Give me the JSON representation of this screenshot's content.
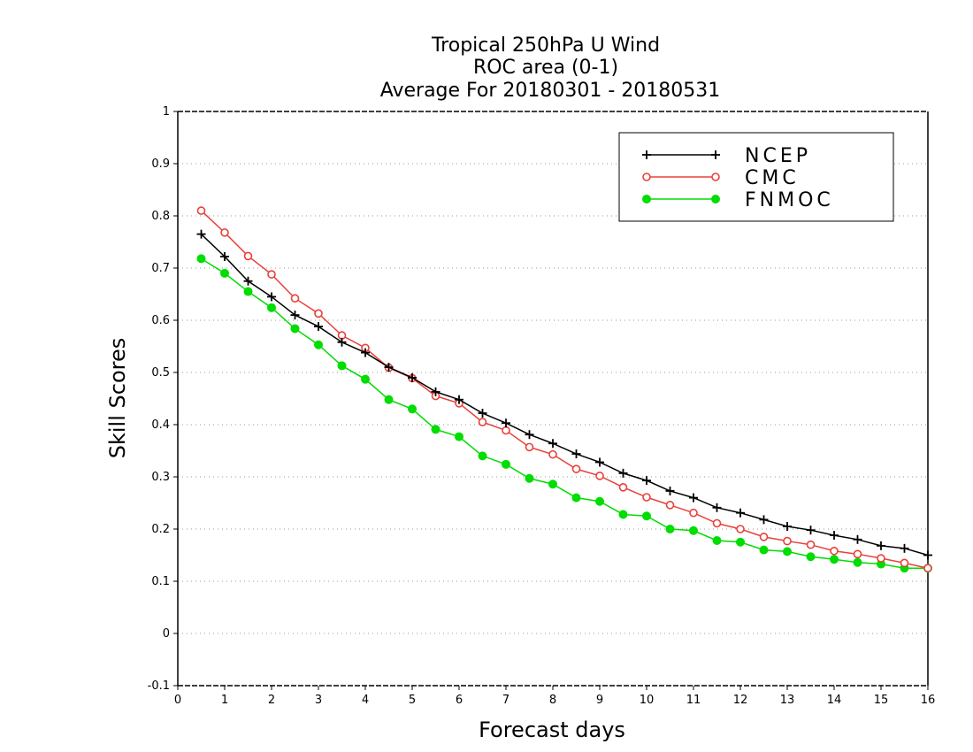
{
  "chart_data": {
    "type": "line",
    "title": "Tropical 250hPa U Wind",
    "subtitle": "ROC area (0-1)",
    "subtitle2": "Average For 20180301 - 20180531",
    "xlabel": "Forecast days",
    "ylabel": "Skill Scores",
    "xlim": [
      0,
      16
    ],
    "ylim": [
      -0.1,
      1
    ],
    "xticks": [
      0,
      1,
      2,
      3,
      4,
      5,
      6,
      7,
      8,
      9,
      10,
      11,
      12,
      13,
      14,
      15,
      16
    ],
    "yticks": [
      -0.1,
      0,
      0.1,
      0.2,
      0.3,
      0.4,
      0.5,
      0.6,
      0.7,
      0.8,
      0.9,
      1
    ],
    "ytick_labels": [
      "-0.1",
      "0",
      "0.1",
      "0.2",
      "0.3",
      "0.4",
      "0.5",
      "0.6",
      "0.7",
      "0.8",
      "0.9",
      "1"
    ],
    "grid": "horizontal dotted",
    "legend_position": "top-right",
    "x": [
      0.5,
      1,
      1.5,
      2,
      2.5,
      3,
      3.5,
      4,
      4.5,
      5,
      5.5,
      6,
      6.5,
      7,
      7.5,
      8,
      8.5,
      9,
      9.5,
      10,
      10.5,
      11,
      11.5,
      12,
      12.5,
      13,
      13.5,
      14,
      14.5,
      15,
      15.5,
      16
    ],
    "series": [
      {
        "name": "NCEP",
        "color": "#000000",
        "marker": "plus",
        "values": [
          0.765,
          0.722,
          0.675,
          0.645,
          0.61,
          0.588,
          0.558,
          0.538,
          0.51,
          0.49,
          0.463,
          0.448,
          0.422,
          0.403,
          0.381,
          0.364,
          0.344,
          0.328,
          0.307,
          0.293,
          0.273,
          0.26,
          0.241,
          0.231,
          0.218,
          0.205,
          0.198,
          0.188,
          0.18,
          0.168,
          0.163,
          0.15
        ]
      },
      {
        "name": "CMC",
        "color": "#e8403a",
        "marker": "open-circle",
        "values": [
          0.81,
          0.768,
          0.723,
          0.688,
          0.642,
          0.613,
          0.571,
          0.547,
          0.509,
          0.489,
          0.455,
          0.441,
          0.405,
          0.389,
          0.357,
          0.343,
          0.315,
          0.302,
          0.28,
          0.261,
          0.246,
          0.231,
          0.211,
          0.2,
          0.185,
          0.177,
          0.17,
          0.158,
          0.152,
          0.144,
          0.135,
          0.125
        ]
      },
      {
        "name": "FNMOC",
        "color": "#00dd00",
        "marker": "filled-circle",
        "values": [
          0.718,
          0.69,
          0.655,
          0.624,
          0.584,
          0.553,
          0.513,
          0.487,
          0.448,
          0.43,
          0.391,
          0.377,
          0.34,
          0.324,
          0.297,
          0.286,
          0.26,
          0.253,
          0.228,
          0.225,
          0.2,
          0.197,
          0.178,
          0.175,
          0.16,
          0.157,
          0.147,
          0.142,
          0.136,
          0.133,
          0.125,
          0.125
        ]
      }
    ]
  }
}
